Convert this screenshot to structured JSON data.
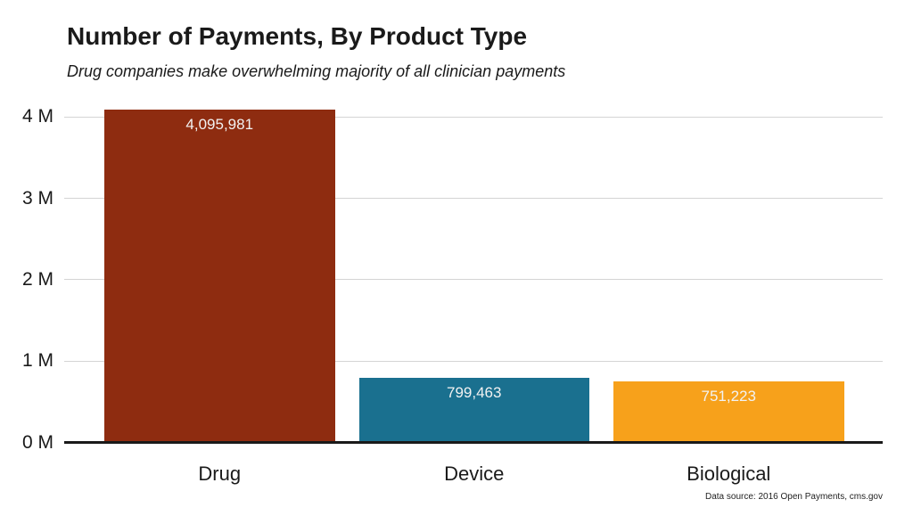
{
  "chart_data": {
    "type": "bar",
    "title": "Number of Payments, By Product Type",
    "subtitle": "Drug companies make overwhelming majority of all clinician payments",
    "categories": [
      "Drug",
      "Device",
      "Biological"
    ],
    "values": [
      4095981,
      799463,
      751223
    ],
    "value_labels": [
      "4,095,981",
      "799,463",
      "751,223"
    ],
    "bar_colors": [
      "#8E2C10",
      "#1A708F",
      "#F7A11B"
    ],
    "yticks": [
      {
        "value": 4000000,
        "label": "4 M"
      },
      {
        "value": 3000000,
        "label": "3 M"
      },
      {
        "value": 2000000,
        "label": "2 M"
      },
      {
        "value": 1000000,
        "label": "1 M"
      },
      {
        "value": 0,
        "label": "0 M"
      }
    ],
    "xlabel": "",
    "ylabel": "",
    "ylim": [
      0,
      4200000
    ],
    "grid": true,
    "legend": false,
    "source_note": "Data source: 2016 Open Payments, cms.gov",
    "colors": {
      "grid": "#d4d4d4",
      "axis": "#1a1a1a",
      "text": "#1a1a1a",
      "value_label": "#f2f2f2",
      "background": "#ffffff"
    }
  }
}
